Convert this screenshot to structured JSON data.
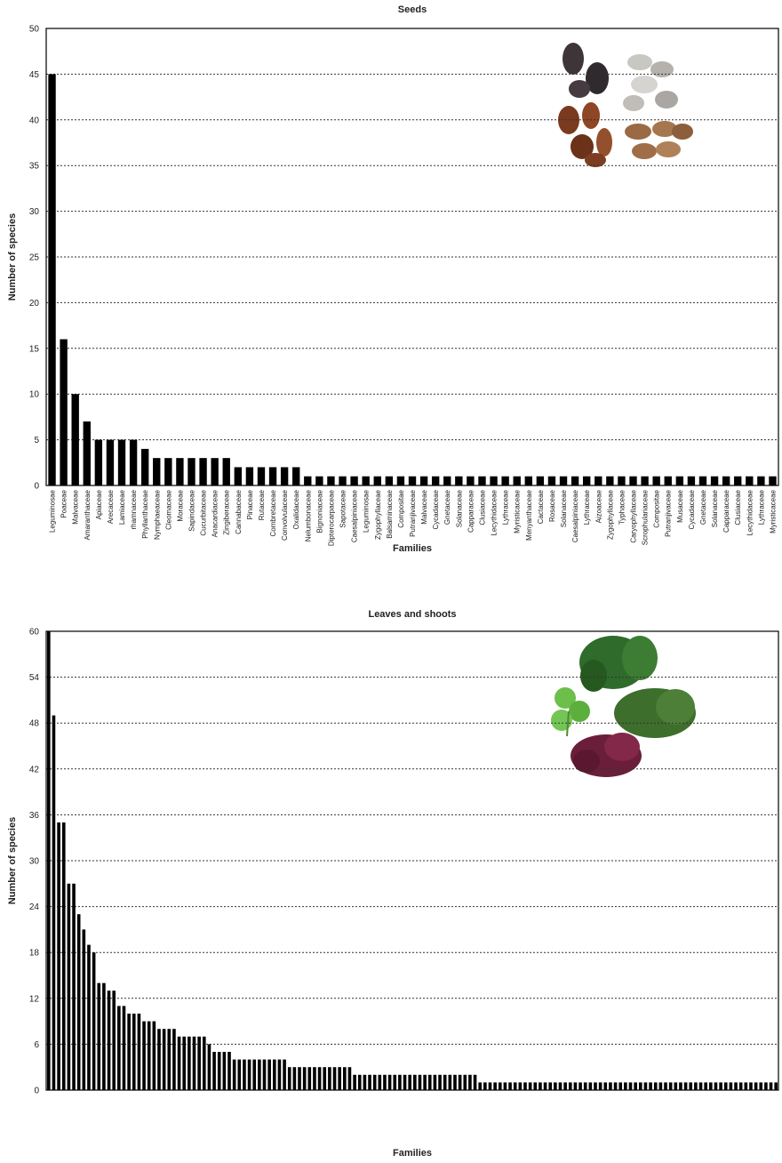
{
  "chart_data": [
    {
      "type": "bar",
      "title": "Seeds",
      "xlabel": "Families",
      "ylabel": "Number of species",
      "color": "#000000",
      "grid": true,
      "ylim": [
        0,
        50
      ],
      "yticks": [
        0,
        5,
        10,
        15,
        20,
        25,
        30,
        35,
        40,
        45,
        50
      ],
      "categories": [
        "Leguminosae",
        "Poaceae",
        "Malvaceae",
        "Amaranthaceae",
        "Apiaceae",
        "Arecaceae",
        "Lamiaceae",
        "rhamnaceae",
        "Phyllanthaceae",
        "Nymphaeaceae",
        "Cleomaceae",
        "Moraceae",
        "Sapindaceae",
        "Cucurbitaceae",
        "Anacardiaceae",
        "Zingiberaceae",
        "Cannabaceae",
        "Pinaceae",
        "Rutaceae",
        "Combretaceae",
        "Convolvulaceae",
        "Oxalidaceae",
        "Nelumbonaceae",
        "Bignoniaceae",
        "Dipterocarpaceae",
        "Sapotaceae",
        "Caesalpiniaceae",
        "Leguminosae",
        "Zygophyllaceae",
        "Balsaminaceae",
        "Compositae",
        "Putranjivaceae",
        "Malvaceae",
        "Cycadaceae",
        "Gnetaceae",
        "Solanaceae",
        "Capparaceae",
        "Clusiaceae",
        "Lecythidaceae",
        "Lythraceae",
        "Myristicaceae",
        "Menyanthaceae",
        "Cactaceae",
        "Rosaceae",
        "Solanaceae",
        "Caesalpiniaceae",
        "Lythraceae",
        "Aizoaceae",
        "Zygophyllaceae",
        "Typhaceae",
        "Caryophyllaceae",
        "Scrophulariaceae",
        "Compositae",
        "Putranjivaceae",
        "Musaceae",
        "Cycadaceae",
        "Gnetaceae",
        "Solanaceae",
        "Capparaceae",
        "Clusiaceae",
        "Lecythidaceae",
        "Lythraceae",
        "Myristicaceae"
      ],
      "values": [
        45,
        16,
        10,
        7,
        5,
        5,
        5,
        5,
        4,
        3,
        3,
        3,
        3,
        3,
        3,
        3,
        2,
        2,
        2,
        2,
        2,
        2,
        1,
        1,
        1,
        1,
        1,
        1,
        1,
        1,
        1,
        1,
        1,
        1,
        1,
        1,
        1,
        1,
        1,
        1,
        1,
        1,
        1,
        1,
        1,
        1,
        1,
        1,
        1,
        1,
        1,
        1,
        1,
        1,
        1,
        1,
        1,
        1,
        1,
        1,
        1,
        1,
        1
      ]
    },
    {
      "type": "bar",
      "title": "Leaves and shoots",
      "xlabel": "Families",
      "ylabel": "Number of species",
      "color": "#000000",
      "grid": true,
      "ylim": [
        0,
        60
      ],
      "yticks": [
        0,
        6,
        12,
        18,
        24,
        30,
        36,
        42,
        48,
        54,
        60
      ],
      "categories": [
        null,
        null,
        null,
        null,
        null,
        null,
        null,
        null,
        null,
        null,
        null,
        null,
        null,
        null,
        null,
        null,
        null,
        null,
        null,
        null,
        null,
        null,
        null,
        null,
        null,
        null,
        null,
        null,
        null,
        null,
        null,
        null,
        null,
        null,
        null,
        null,
        null,
        null,
        null,
        null,
        null,
        null,
        null,
        null,
        null,
        null,
        null,
        null,
        null,
        null,
        null,
        null,
        null,
        null,
        null,
        null,
        null,
        null,
        null,
        null,
        null,
        null,
        null,
        null,
        null,
        null,
        null,
        null,
        null,
        null,
        null,
        null,
        null,
        null,
        null,
        null,
        null,
        null,
        null,
        null,
        null,
        null,
        null,
        null,
        null,
        null,
        null,
        null,
        null,
        null,
        null,
        null,
        null,
        null,
        null,
        null,
        null,
        null,
        null,
        null,
        null,
        null,
        null,
        null,
        null,
        null,
        null,
        null,
        null,
        null,
        null,
        null,
        null,
        null,
        null,
        null,
        null,
        null,
        null,
        null,
        null,
        null,
        null,
        null,
        null,
        null,
        null,
        null,
        null,
        null,
        null,
        null,
        null,
        null,
        null,
        null,
        null,
        null,
        null,
        null,
        null,
        null,
        null,
        null,
        null,
        null
      ],
      "values": [
        60,
        49,
        35,
        35,
        27,
        27,
        23,
        21,
        19,
        18,
        14,
        14,
        13,
        13,
        11,
        11,
        10,
        10,
        10,
        9,
        9,
        9,
        8,
        8,
        8,
        8,
        7,
        7,
        7,
        7,
        7,
        7,
        6,
        5,
        5,
        5,
        5,
        4,
        4,
        4,
        4,
        4,
        4,
        4,
        4,
        4,
        4,
        4,
        3,
        3,
        3,
        3,
        3,
        3,
        3,
        3,
        3,
        3,
        3,
        3,
        3,
        2,
        2,
        2,
        2,
        2,
        2,
        2,
        2,
        2,
        2,
        2,
        2,
        2,
        2,
        2,
        2,
        2,
        2,
        2,
        2,
        2,
        2,
        2,
        2,
        2,
        1,
        1,
        1,
        1,
        1,
        1,
        1,
        1,
        1,
        1,
        1,
        1,
        1,
        1,
        1,
        1,
        1,
        1,
        1,
        1,
        1,
        1,
        1,
        1,
        1,
        1,
        1,
        1,
        1,
        1,
        1,
        1,
        1,
        1,
        1,
        1,
        1,
        1,
        1,
        1,
        1,
        1,
        1,
        1,
        1,
        1,
        1,
        1,
        1,
        1,
        1,
        1,
        1,
        1,
        1,
        1,
        1,
        1,
        1,
        1
      ]
    }
  ]
}
